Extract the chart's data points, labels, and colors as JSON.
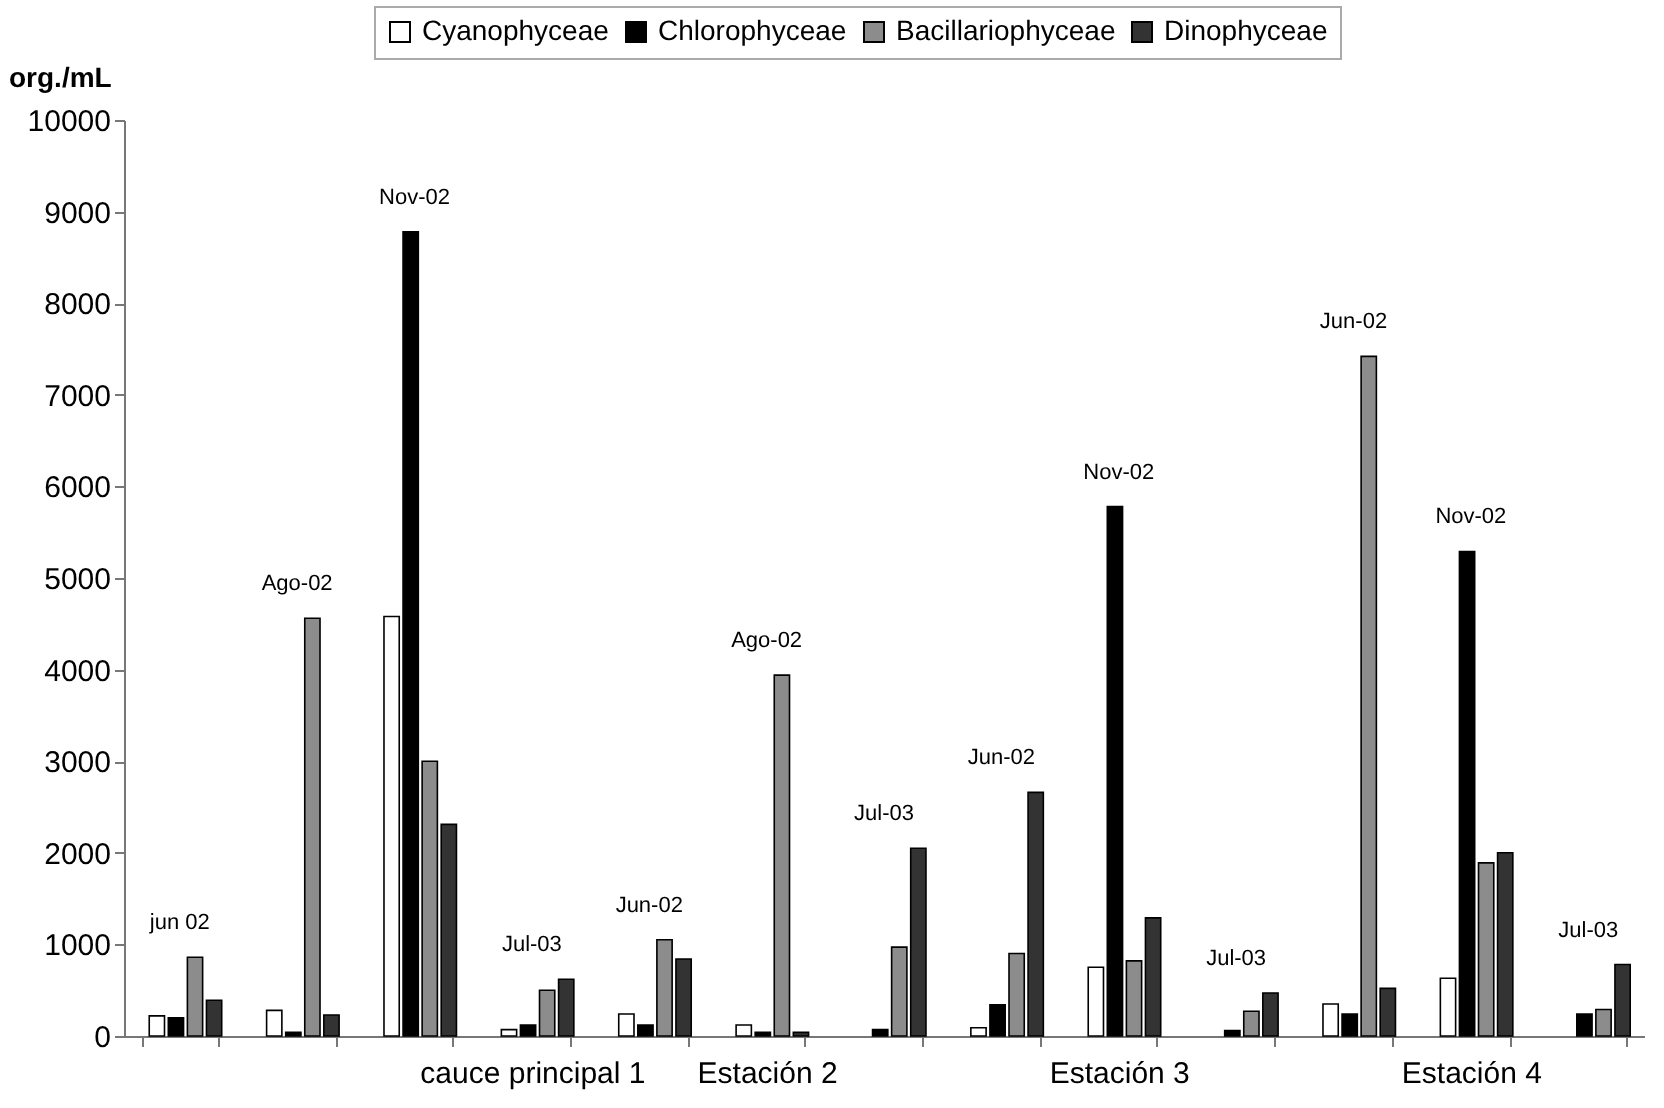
{
  "chart_data": {
    "type": "bar",
    "ylabel": "org./mL",
    "categories": [
      null,
      null,
      null,
      "cauce principal 1",
      null,
      "Estación 2",
      null,
      null,
      "Estación 3",
      null,
      null,
      "Estación 4",
      null
    ],
    "series": [
      {
        "name": "Cyanophyceae",
        "color": "#ffffff",
        "values": [
          220,
          280,
          4580,
          70,
          240,
          120,
          0,
          90,
          750,
          0,
          350,
          630,
          0
        ]
      },
      {
        "name": "Chlorophyceae",
        "color": "#000000",
        "values": [
          200,
          40,
          8780,
          120,
          120,
          40,
          70,
          340,
          5780,
          60,
          240,
          5290,
          240
        ]
      },
      {
        "name": "Bacillariophyceae",
        "color": "#8c8c8c",
        "values": [
          860,
          4560,
          3000,
          500,
          1050,
          3940,
          970,
          900,
          820,
          270,
          7420,
          1890,
          290
        ]
      },
      {
        "name": "Dinophyceae",
        "color": "#333333",
        "values": [
          390,
          230,
          2310,
          620,
          840,
          40,
          2050,
          2660,
          1290,
          470,
          520,
          2000,
          780
        ]
      }
    ],
    "ylim": [
      0,
      10000
    ],
    "yticks": [
      0,
      1000,
      2000,
      3000,
      4000,
      5000,
      6000,
      7000,
      8000,
      9000,
      10000
    ],
    "annotations": [
      "jun 02",
      "Ago-02",
      "Nov-02",
      "Jul-03",
      "Jun-02",
      "Ago-02",
      "Jul-03",
      "Jun-02",
      "Nov-02",
      "Jul-03",
      "Jun-02",
      "Nov-02",
      "Jul-03"
    ],
    "legend": "top",
    "grid": false
  }
}
